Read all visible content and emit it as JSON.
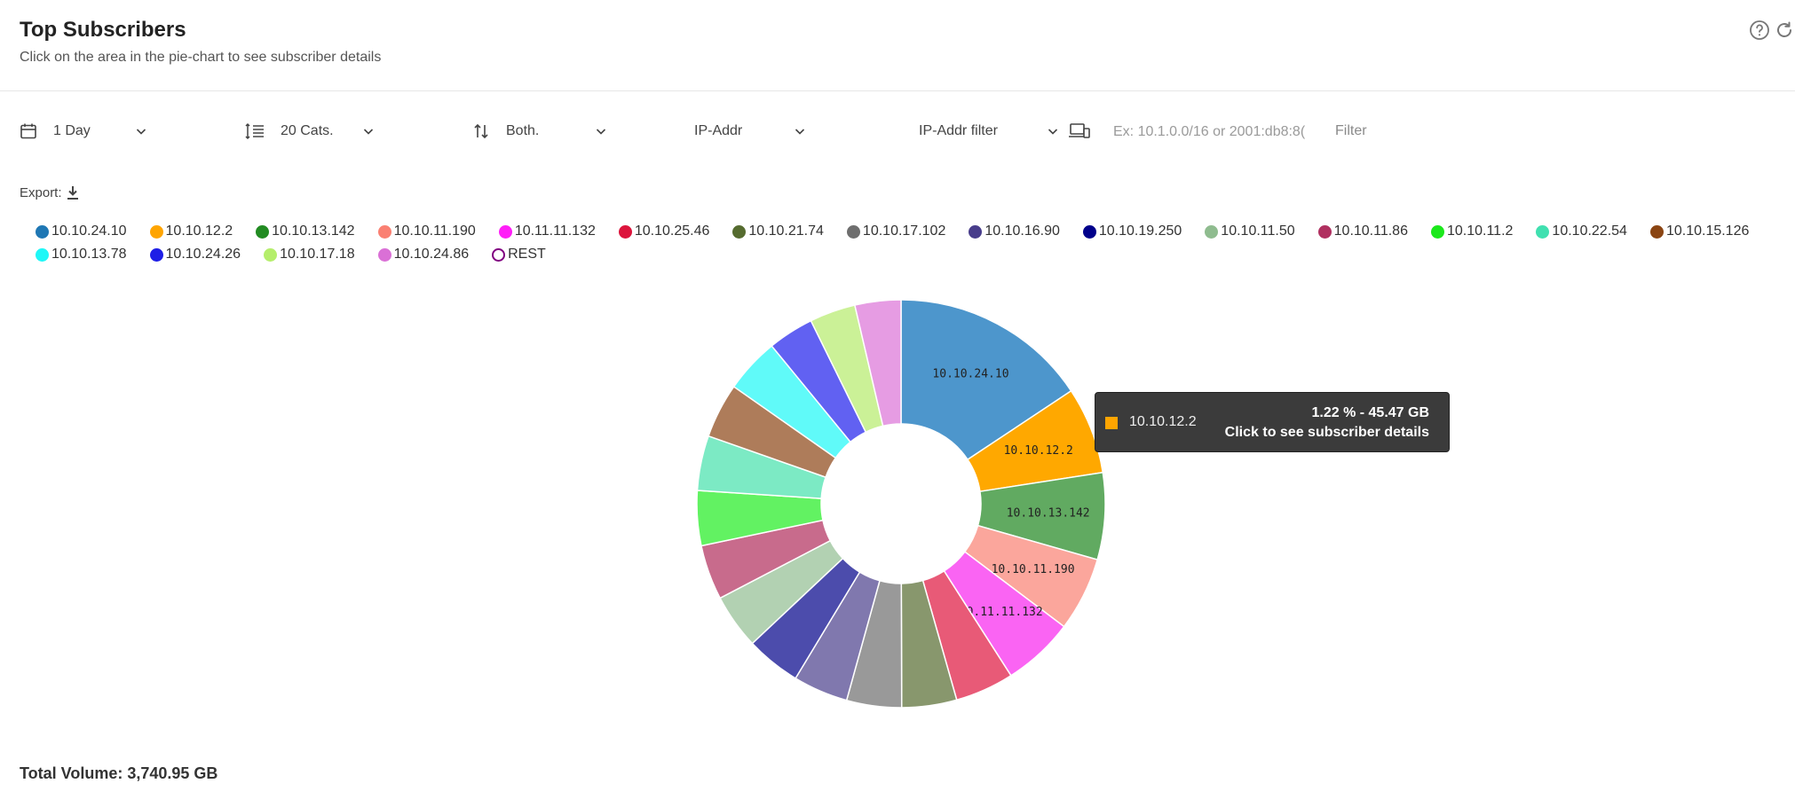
{
  "header": {
    "title": "Top Subscribers",
    "subtitle": "Click on the area in the pie-chart to see subscriber details"
  },
  "toolbar": {
    "period": "1 Day",
    "categories": "20 Cats.",
    "direction": "Both.",
    "ip_type": "IP-Addr",
    "ip_filter_type": "IP-Addr filter",
    "ip_filter_placeholder": "Ex: 10.1.0.0/16 or 2001:db8:8(",
    "filter_label": "Filter"
  },
  "export_label": "Export:",
  "icons": {
    "help": "help-circle-icon",
    "refresh": "refresh-icon",
    "period": "calendar-icon",
    "categories": "list-lines-icon",
    "direction": "sort-arrows-icon",
    "device": "device-icon",
    "export": "download-icon",
    "dropdown": "chevron-down-icon"
  },
  "legend": [
    {
      "label": "10.10.24.10",
      "color": "#1f77b4"
    },
    {
      "label": "10.10.12.2",
      "color": "#ffa500"
    },
    {
      "label": "10.10.13.142",
      "color": "#228b22"
    },
    {
      "label": "10.10.11.190",
      "color": "#fa8072"
    },
    {
      "label": "10.11.11.132",
      "color": "#ff1ef7"
    },
    {
      "label": "10.10.25.46",
      "color": "#dc143c"
    },
    {
      "label": "10.10.21.74",
      "color": "#556b2f"
    },
    {
      "label": "10.10.17.102",
      "color": "#6e6e6e"
    },
    {
      "label": "10.10.16.90",
      "color": "#483d8b"
    },
    {
      "label": "10.10.19.250",
      "color": "#00008b"
    },
    {
      "label": "10.10.11.50",
      "color": "#8fbc8f"
    },
    {
      "label": "10.10.11.86",
      "color": "#b03060"
    },
    {
      "label": "10.10.11.2",
      "color": "#1be81b"
    },
    {
      "label": "10.10.22.54",
      "color": "#40e0b0"
    },
    {
      "label": "10.10.15.126",
      "color": "#8b4513"
    },
    {
      "label": "10.10.13.78",
      "color": "#1ef7f7"
    },
    {
      "label": "10.10.24.26",
      "color": "#1e1ee6"
    },
    {
      "label": "10.10.17.18",
      "color": "#b5ee6b"
    },
    {
      "label": "10.10.24.86",
      "color": "#da70d6"
    },
    {
      "label": "REST",
      "color": "#ffffff",
      "ring": "#800080"
    }
  ],
  "chart_data": {
    "type": "pie",
    "donut": true,
    "series": [
      {
        "label": "10.10.24.10",
        "value": 15.5,
        "color": "#4d96cc"
      },
      {
        "label": "10.10.12.2",
        "value": 6.8,
        "color": "#ffa800"
      },
      {
        "label": "10.10.13.142",
        "value": 6.8,
        "color": "#61aa61"
      },
      {
        "label": "10.10.11.190",
        "value": 5.8,
        "color": "#fba69c"
      },
      {
        "label": "10.11.11.132",
        "value": 5.6,
        "color": "#fa64f3"
      },
      {
        "label": "10.10.25.46",
        "value": 4.6,
        "color": "#e85a77"
      },
      {
        "label": "10.10.21.74",
        "value": 4.3,
        "color": "#88976d"
      },
      {
        "label": "10.10.17.102",
        "value": 4.3,
        "color": "#999999"
      },
      {
        "label": "10.10.16.90",
        "value": 4.3,
        "color": "#8078ae"
      },
      {
        "label": "10.10.19.250",
        "value": 4.3,
        "color": "#4c4cac"
      },
      {
        "label": "10.10.11.50",
        "value": 4.3,
        "color": "#b2d1b2"
      },
      {
        "label": "10.10.11.86",
        "value": 4.3,
        "color": "#c86b8c"
      },
      {
        "label": "10.10.11.2",
        "value": 4.3,
        "color": "#62f262"
      },
      {
        "label": "10.10.22.54",
        "value": 4.3,
        "color": "#7ceac4"
      },
      {
        "label": "10.10.15.126",
        "value": 4.3,
        "color": "#ae7c5a"
      },
      {
        "label": "10.10.13.78",
        "value": 4.3,
        "color": "#60faf9"
      },
      {
        "label": "10.10.24.26",
        "value": 3.6,
        "color": "#6161f2"
      },
      {
        "label": "10.10.17.18",
        "value": 3.6,
        "color": "#cbf197"
      },
      {
        "label": "10.10.24.86",
        "value": 3.6,
        "color": "#e69ce3"
      }
    ],
    "shown_labels": [
      "10.10.24.10",
      "10.10.12.2",
      "10.10.13.142",
      "10.10.11.190",
      "10.11.11.132"
    ]
  },
  "tooltip": {
    "label": "10.10.12.2",
    "color": "#ffa500",
    "line1": "1.22 % - 45.47 GB",
    "line2": "Click to see subscriber details"
  },
  "total": "Total Volume: 3,740.95 GB"
}
